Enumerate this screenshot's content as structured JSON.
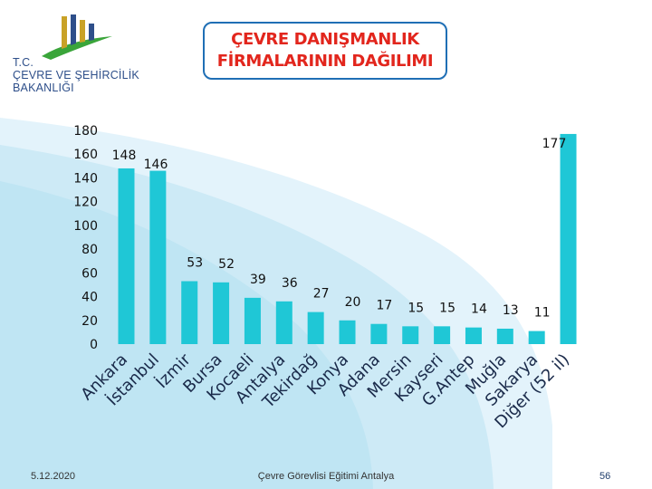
{
  "slide": {
    "logo_lines": [
      "T.C.",
      "ÇEVRE VE ŞEHİRCİLİK",
      "BAKANLIĞI"
    ],
    "title_line1": "ÇEVRE DANIŞMANLIK",
    "title_line2": "FİRMALARININ DAĞILIMI",
    "footer_date": "5.12.2020",
    "footer_center": "Çevre Görevlisi Eğitimi Antalya",
    "page_number": "56"
  },
  "colors": {
    "bar": "#1fc7d6",
    "title": "#e2261d",
    "title_border": "#1f6fb5",
    "logo_blue": "#2e4f8a",
    "logo_green": "#3aa53a",
    "logo_gold": "#c9a227"
  },
  "chart_data": {
    "type": "bar",
    "title": "ÇEVRE DANIŞMANLIK FİRMALARININ DAĞILIMI",
    "xlabel": "",
    "ylabel": "",
    "categories": [
      "Ankara",
      "İstanbul",
      "İzmir",
      "Bursa",
      "Kocaeli",
      "Antalya",
      "Tekirdağ",
      "Konya",
      "Adana",
      "Mersin",
      "Kayseri",
      "G.Antep",
      "Muğla",
      "Sakarya",
      "Diğer (52 il)"
    ],
    "values": [
      148,
      146,
      53,
      52,
      39,
      36,
      27,
      20,
      17,
      15,
      15,
      14,
      13,
      11,
      177
    ],
    "value_labels": [
      "148",
      "146",
      "53",
      "52",
      "39",
      "36",
      "27",
      "20",
      "17",
      "15",
      "15",
      "14",
      "13",
      "11",
      "177"
    ],
    "ylim": [
      0,
      180
    ],
    "yticks": [
      "0",
      "20",
      "40",
      "60",
      "80",
      "100",
      "120",
      "140",
      "160",
      "180"
    ],
    "grid": false,
    "legend": "none"
  }
}
